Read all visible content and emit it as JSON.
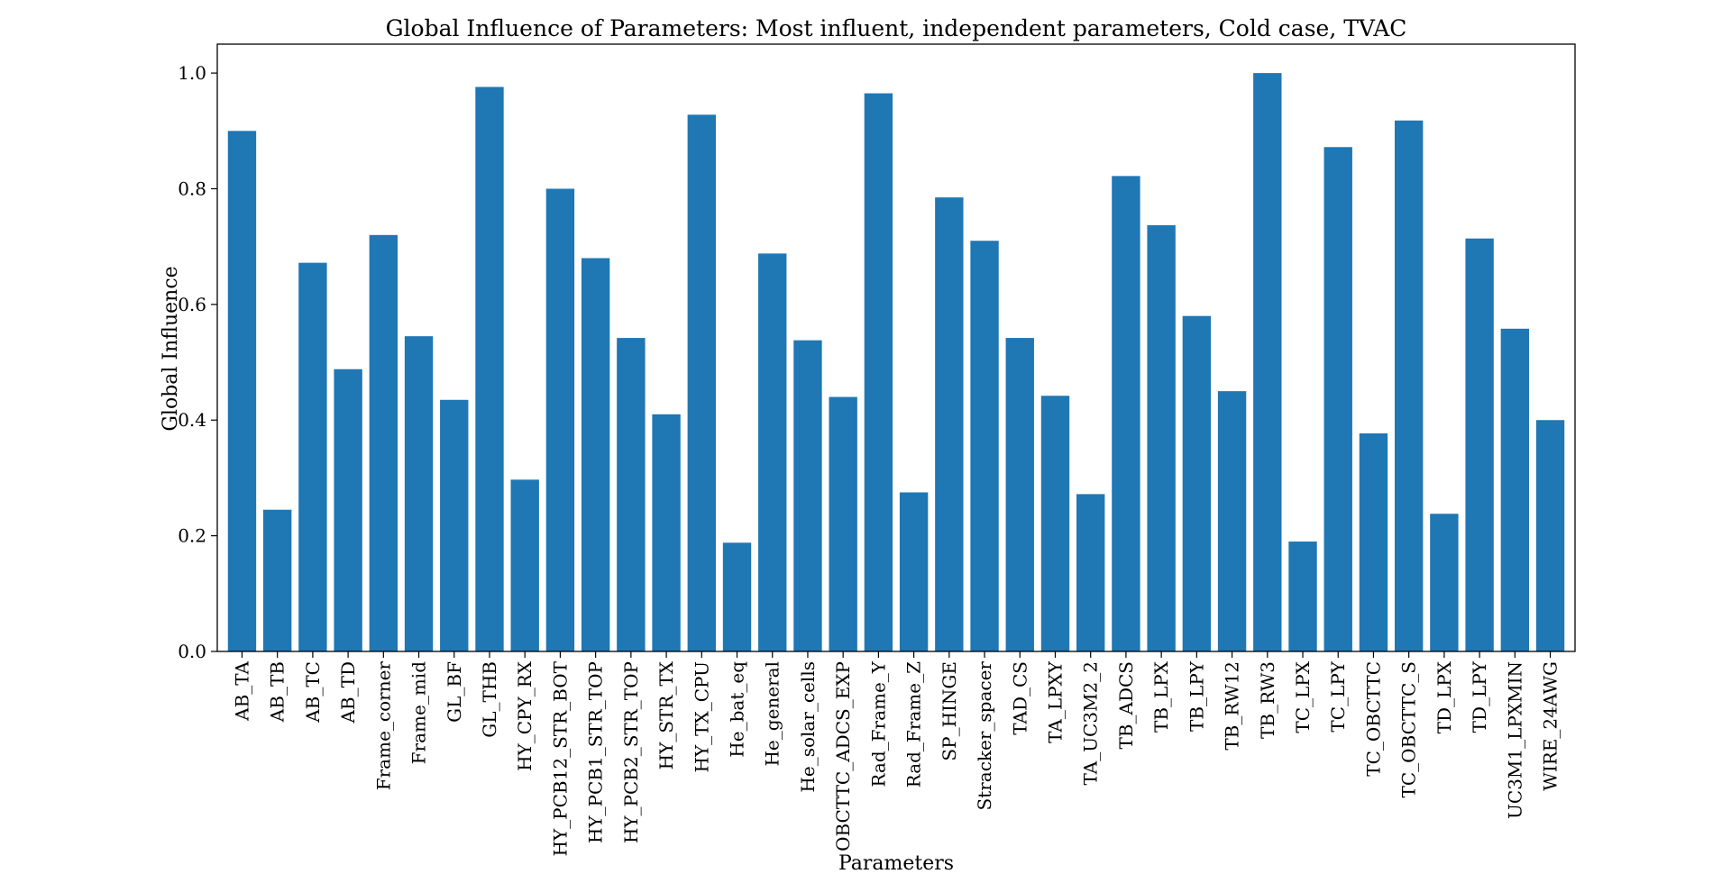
{
  "chart_data": {
    "type": "bar",
    "title": "Global Influence of Parameters: Most influent, independent parameters, Cold case, TVAC",
    "xlabel": "Parameters",
    "ylabel": "Global Influence",
    "ylim": [
      0,
      1.05
    ],
    "y_ticks": [
      0.0,
      0.2,
      0.4,
      0.6,
      0.8,
      1.0
    ],
    "y_tick_labels": [
      "0.0",
      "0.2",
      "0.4",
      "0.6",
      "0.8",
      "1.0"
    ],
    "grid": false,
    "bar_color": "#1f77b4",
    "categories": [
      "AB_TA",
      "AB_TB",
      "AB_TC",
      "AB_TD",
      "Frame_corner",
      "Frame_mid",
      "GL_BF",
      "GL_THB",
      "HY_CPY_RX",
      "HY_PCB12_STR_BOT",
      "HY_PCB1_STR_TOP",
      "HY_PCB2_STR_TOP",
      "HY_STR_TX",
      "HY_TX_CPU",
      "He_bat_eq",
      "He_general",
      "He_solar_cells",
      "OBCTTC_ADCS_EXP",
      "Rad_Frame_Y",
      "Rad_Frame_Z",
      "SP_HINGE",
      "Stracker_spacer",
      "TAD_CS",
      "TA_LPXY",
      "TA_UC3M2_2",
      "TB_ADCS",
      "TB_LPX",
      "TB_LPY",
      "TB_RW12",
      "TB_RW3",
      "TC_LPX",
      "TC_LPY",
      "TC_OBCTTC",
      "TC_OBCTTC_S",
      "TD_LPX",
      "TD_LPY",
      "UC3M1_LPXMIN",
      "WIRE_24AWG"
    ],
    "values": [
      0.9,
      0.245,
      0.672,
      0.488,
      0.72,
      0.545,
      0.435,
      0.976,
      0.297,
      0.8,
      0.68,
      0.542,
      0.41,
      0.928,
      0.188,
      0.688,
      0.538,
      0.44,
      0.965,
      0.275,
      0.785,
      0.71,
      0.542,
      0.442,
      0.272,
      0.822,
      0.737,
      0.58,
      0.45,
      1.0,
      0.19,
      0.872,
      0.377,
      0.918,
      0.238,
      0.714,
      0.558,
      0.4
    ]
  }
}
